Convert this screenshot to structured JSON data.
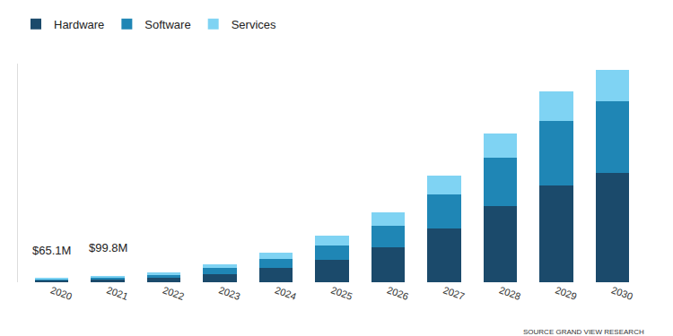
{
  "chart_data": {
    "type": "bar",
    "stacked": true,
    "categories": [
      "2020",
      "2021",
      "2022",
      "2023",
      "2024",
      "2025",
      "2026",
      "2027",
      "2028",
      "2029",
      "2030"
    ],
    "series": [
      {
        "name": "Hardware",
        "color": "#1b4a6b",
        "values": [
          30.5,
          46.8,
          70,
          140,
          230,
          370,
          570,
          880,
          1250,
          1600,
          1800
        ]
      },
      {
        "name": "Software",
        "color": "#1f86b5",
        "values": [
          20.4,
          31.0,
          50,
          95,
          150,
          240,
          360,
          560,
          800,
          1050,
          1180
        ]
      },
      {
        "name": "Services",
        "color": "#7fd3f3",
        "values": [
          14.2,
          22.0,
          40,
          65,
          100,
          150,
          220,
          310,
          400,
          500,
          520
        ]
      }
    ],
    "annotations": [
      {
        "x": "2020",
        "y": 65.1,
        "text": "$65.1M"
      },
      {
        "x": "2021",
        "y": 99.8,
        "text": "$99.8M"
      }
    ],
    "source": "SOURCE GRAND VIEW RESEARCH",
    "ylim": [
      0,
      3600
    ],
    "tick_labels": "x",
    "grid": false,
    "legend": "top left"
  }
}
